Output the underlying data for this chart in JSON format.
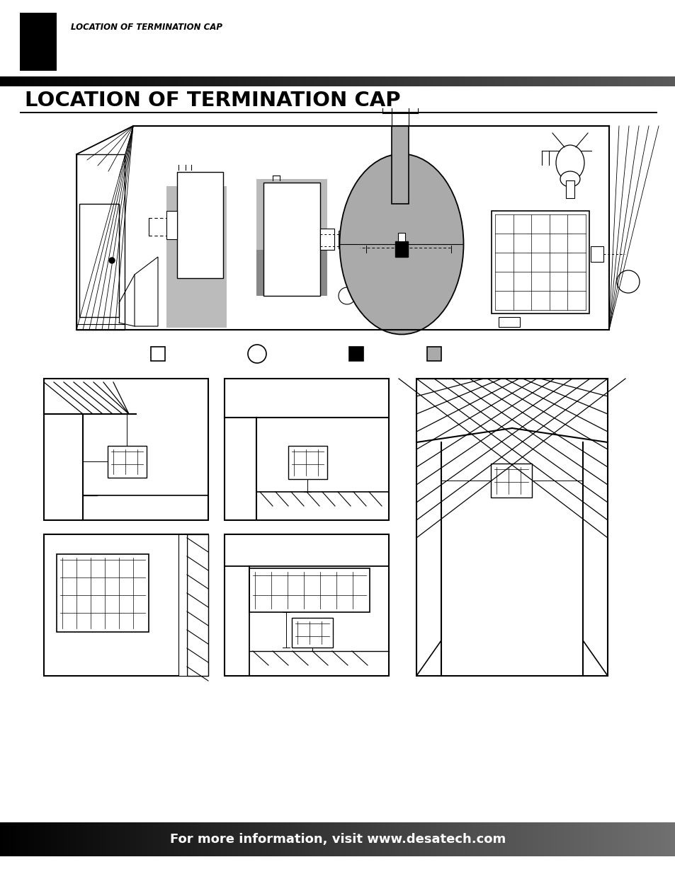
{
  "page_bg": "#ffffff",
  "header_text": "LOCATION OF TERMINATION CAP",
  "title_text": "LOCATION OF TERMINATION CAP",
  "footer_text": "For more information, visit www.desatech.com",
  "gray_ellipse": "#aaaaaa",
  "gray_pipe": "#aaaaaa",
  "gray_shadow": "#bbbbbb",
  "light_gray": "#cccccc"
}
